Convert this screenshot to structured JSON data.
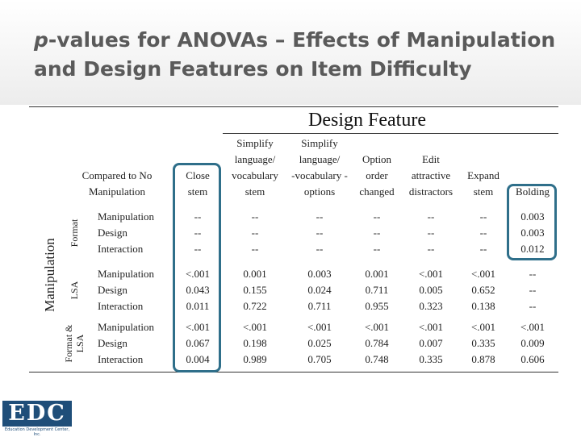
{
  "slide": {
    "title_italic": "p",
    "title_rest": "-values for ANOVAs – Effects of Manipulation and Design Features on Item Difficulty",
    "design_feature": "Design Feature",
    "compared_to": [
      "Compared to No",
      "Manipulation"
    ],
    "manipulation_label": "Manipulation",
    "groups": [
      {
        "label": [
          "Format"
        ],
        "rows": [
          "Manipulation",
          "Design",
          "Interaction"
        ]
      },
      {
        "label": [
          "LSA"
        ],
        "rows": [
          "Manipulation",
          "Design",
          "Interaction"
        ]
      },
      {
        "label": [
          "Format &",
          "LSA"
        ],
        "rows": [
          "Manipulation",
          "Design",
          "Interaction"
        ]
      }
    ],
    "columns": [
      {
        "header": [
          "Close",
          "stem"
        ],
        "groups": [
          [
            "--",
            "--",
            "--"
          ],
          [
            "<.001",
            "0.043",
            "0.011"
          ],
          [
            "<.001",
            "0.067",
            "0.004"
          ]
        ]
      },
      {
        "header": [
          "Simplify",
          "language/",
          "vocabulary",
          "stem"
        ],
        "groups": [
          [
            "--",
            "--",
            "--"
          ],
          [
            "0.001",
            "0.155",
            "0.722"
          ],
          [
            "<.001",
            "0.198",
            "0.989"
          ]
        ]
      },
      {
        "header": [
          "Simplify",
          "language/",
          "-vocabulary -",
          "options"
        ],
        "groups": [
          [
            "--",
            "--",
            "--"
          ],
          [
            "0.003",
            "0.024",
            "0.711"
          ],
          [
            "<.001",
            "0.025",
            "0.705"
          ]
        ]
      },
      {
        "header": [
          "Option",
          "order",
          "changed"
        ],
        "groups": [
          [
            "--",
            "--",
            "--"
          ],
          [
            "0.001",
            "0.711",
            "0.955"
          ],
          [
            "<.001",
            "0.784",
            "0.748"
          ]
        ]
      },
      {
        "header": [
          "Edit",
          "attractive",
          "distractors"
        ],
        "groups": [
          [
            "--",
            "--",
            "--"
          ],
          [
            "<.001",
            "0.005",
            "0.323"
          ],
          [
            "<.001",
            "0.007",
            "0.335"
          ]
        ]
      },
      {
        "header": [
          "Expand",
          "stem"
        ],
        "groups": [
          [
            "--",
            "--",
            "--"
          ],
          [
            "<.001",
            "0.652",
            "0.138"
          ],
          [
            "<.001",
            "0.335",
            "0.878"
          ]
        ]
      },
      {
        "header": [
          "Bolding"
        ],
        "groups": [
          [
            "0.003",
            "0.003",
            "0.012"
          ],
          [
            "--",
            "--",
            "--"
          ],
          [
            "<.001",
            "0.009",
            "0.606"
          ]
        ]
      }
    ],
    "logo": {
      "text": "EDC",
      "subtitle": "Education Development Center, Inc."
    }
  }
}
